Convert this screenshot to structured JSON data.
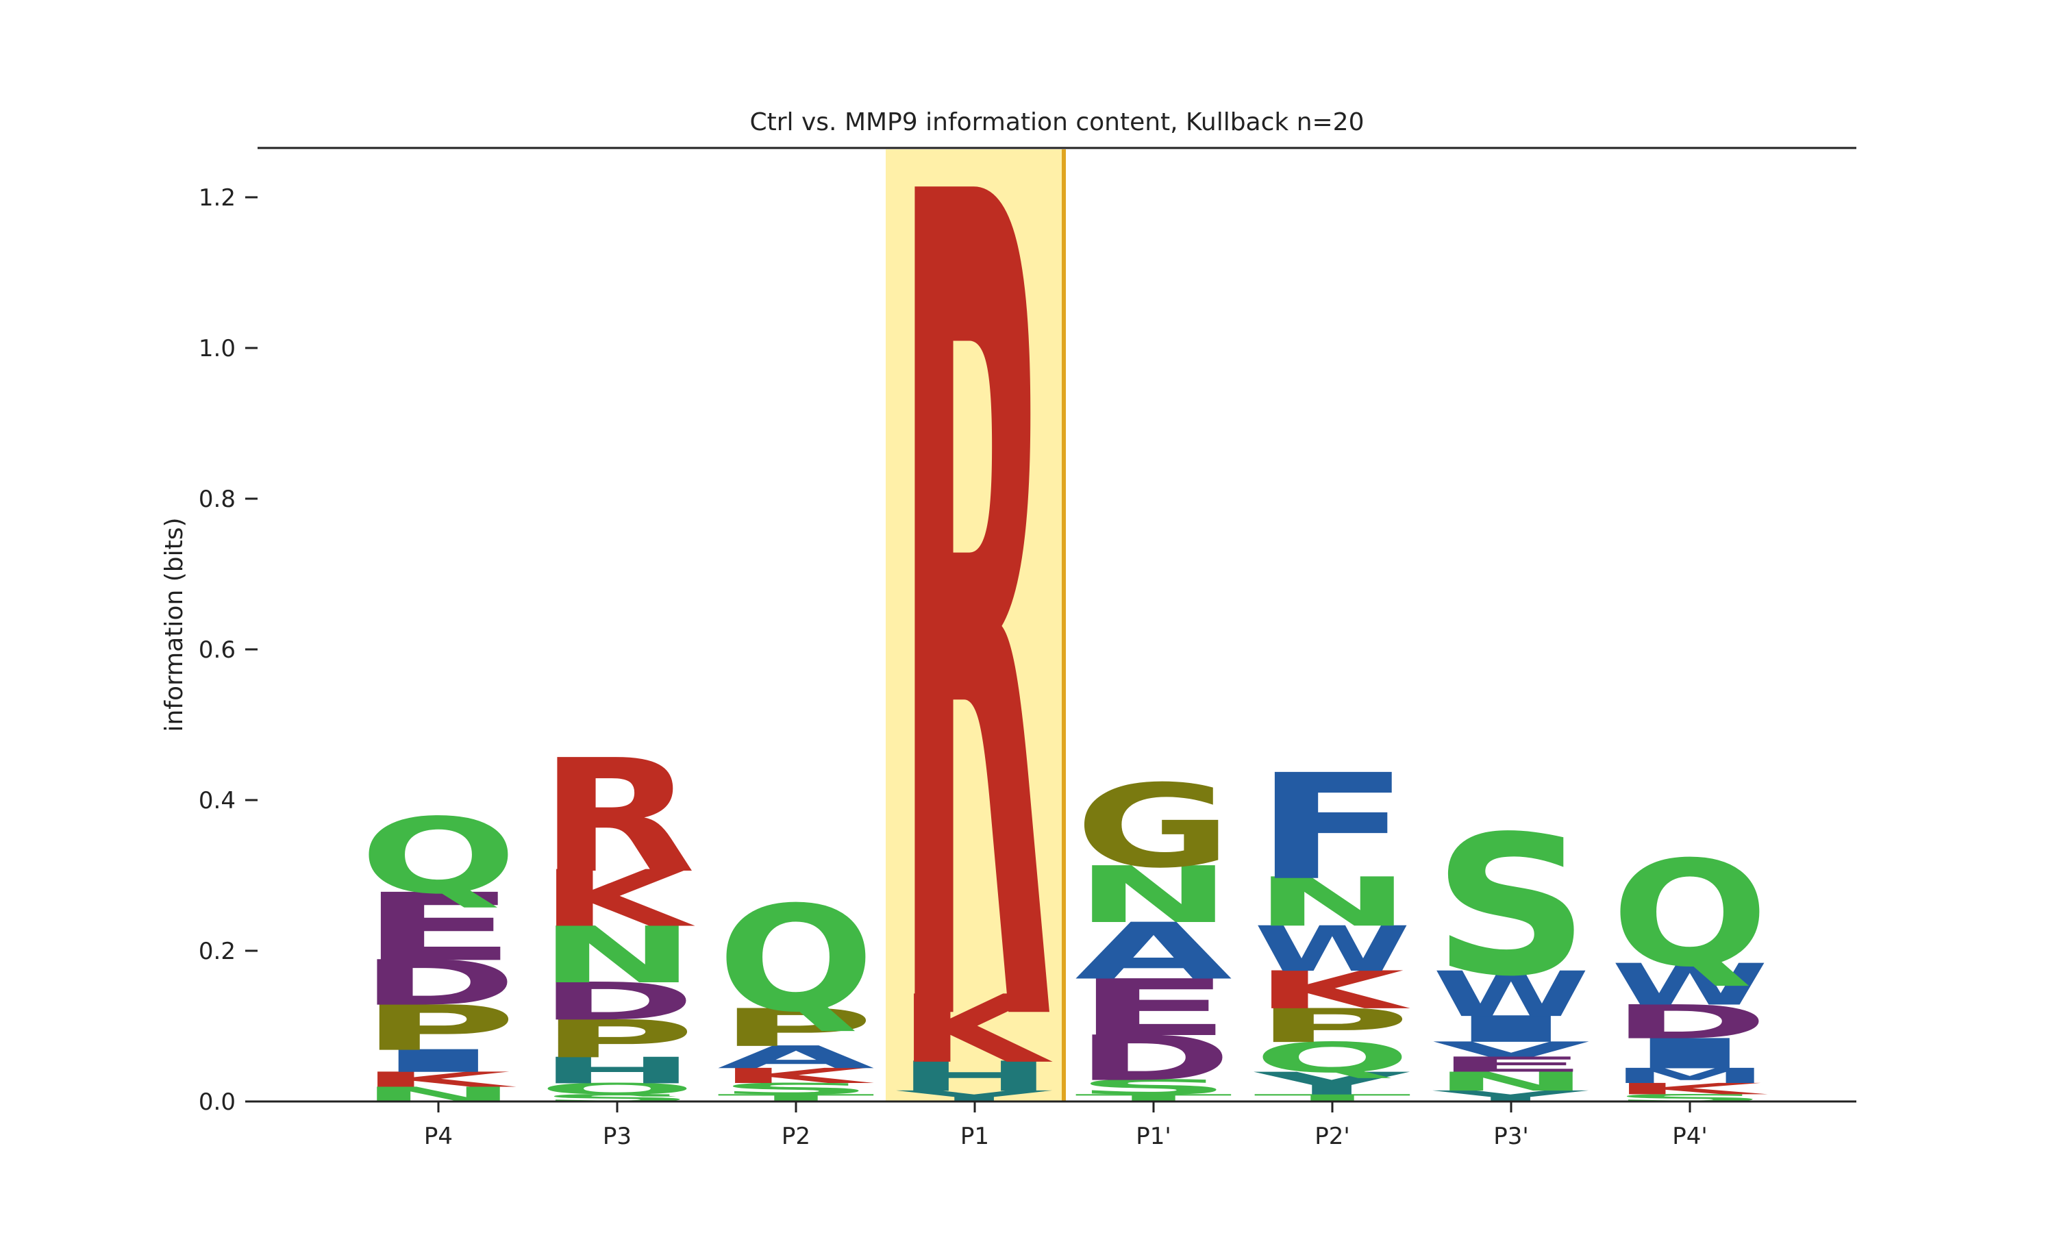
{
  "chart_data": {
    "type": "sequence_logo",
    "title": "Ctrl vs. MMP9 information content, Kullback n=20",
    "xlabel": "",
    "ylabel": "information (bits)",
    "ylim": [
      0,
      1.26
    ],
    "yticks": [
      "0.0",
      "0.2",
      "0.4",
      "0.6",
      "0.8",
      "1.0",
      "1.2"
    ],
    "grid": false,
    "highlighted_position": "P1",
    "highlight_color": "#FFF0A8",
    "highlight_edge_color": "#E0A520",
    "residue_colors": {
      "R": "#BE2D22",
      "K": "#BE2D22",
      "H": "#1F7878",
      "D": "#6A2A70",
      "E": "#6A2A70",
      "Q": "#41B846",
      "N": "#41B846",
      "S": "#41B846",
      "T": "#41B846",
      "G": "#7A7A10",
      "P": "#7A7A10",
      "A": "#235BA3",
      "W": "#235BA3",
      "F": "#235BA3",
      "I": "#235BA3",
      "V": "#235BA3",
      "M": "#235BA3",
      "L": "#235BA3",
      "Y": "#1F7878",
      "C": "#235BA3"
    },
    "positions": [
      {
        "label": "P4",
        "stack": [
          {
            "letter": "N",
            "bits": 0.02
          },
          {
            "letter": "K",
            "bits": 0.02
          },
          {
            "letter": "I",
            "bits": 0.03
          },
          {
            "letter": "P",
            "bits": 0.06
          },
          {
            "letter": "D",
            "bits": 0.06
          },
          {
            "letter": "E",
            "bits": 0.09
          },
          {
            "letter": "Q",
            "bits": 0.1
          }
        ]
      },
      {
        "label": "P3",
        "stack": [
          {
            "letter": "S",
            "bits": 0.01
          },
          {
            "letter": "Q",
            "bits": 0.015
          },
          {
            "letter": "H",
            "bits": 0.035
          },
          {
            "letter": "P",
            "bits": 0.05
          },
          {
            "letter": "D",
            "bits": 0.05
          },
          {
            "letter": "N",
            "bits": 0.075
          },
          {
            "letter": "K",
            "bits": 0.075
          },
          {
            "letter": "R",
            "bits": 0.15
          }
        ]
      },
      {
        "label": "P2",
        "stack": [
          {
            "letter": "T",
            "bits": 0.01
          },
          {
            "letter": "S",
            "bits": 0.015
          },
          {
            "letter": "K",
            "bits": 0.02
          },
          {
            "letter": "A",
            "bits": 0.03
          },
          {
            "letter": "P",
            "bits": 0.05
          },
          {
            "letter": "Q",
            "bits": 0.14
          }
        ]
      },
      {
        "label": "P1",
        "stack": [
          {
            "letter": "Y",
            "bits": 0.015
          },
          {
            "letter": "H",
            "bits": 0.04
          },
          {
            "letter": "K",
            "bits": 0.09
          },
          {
            "letter": "R",
            "bits": 1.09
          }
        ]
      },
      {
        "label": "P1'",
        "stack": [
          {
            "letter": "T",
            "bits": 0.01
          },
          {
            "letter": "S",
            "bits": 0.02
          },
          {
            "letter": "D",
            "bits": 0.06
          },
          {
            "letter": "E",
            "bits": 0.075
          },
          {
            "letter": "A",
            "bits": 0.075
          },
          {
            "letter": "N",
            "bits": 0.075
          },
          {
            "letter": "G",
            "bits": 0.11
          }
        ]
      },
      {
        "label": "P2'",
        "stack": [
          {
            "letter": "T",
            "bits": 0.01
          },
          {
            "letter": "Y",
            "bits": 0.03
          },
          {
            "letter": "Q",
            "bits": 0.04
          },
          {
            "letter": "P",
            "bits": 0.045
          },
          {
            "letter": "K",
            "bits": 0.05
          },
          {
            "letter": "W",
            "bits": 0.06
          },
          {
            "letter": "N",
            "bits": 0.065
          },
          {
            "letter": "F",
            "bits": 0.14
          }
        ]
      },
      {
        "label": "P3'",
        "stack": [
          {
            "letter": "Y",
            "bits": 0.015
          },
          {
            "letter": "N",
            "bits": 0.025
          },
          {
            "letter": "E",
            "bits": 0.02
          },
          {
            "letter": "V",
            "bits": 0.02
          },
          {
            "letter": "I",
            "bits": 0.035
          },
          {
            "letter": "W",
            "bits": 0.06
          },
          {
            "letter": "S",
            "bits": 0.185
          }
        ]
      },
      {
        "label": "P4'",
        "stack": [
          {
            "letter": "S",
            "bits": 0.01
          },
          {
            "letter": "K",
            "bits": 0.015
          },
          {
            "letter": "M",
            "bits": 0.02
          },
          {
            "letter": "I",
            "bits": 0.04
          },
          {
            "letter": "D",
            "bits": 0.045
          },
          {
            "letter": "W",
            "bits": 0.055
          },
          {
            "letter": "Q",
            "bits": 0.14
          }
        ]
      }
    ]
  }
}
